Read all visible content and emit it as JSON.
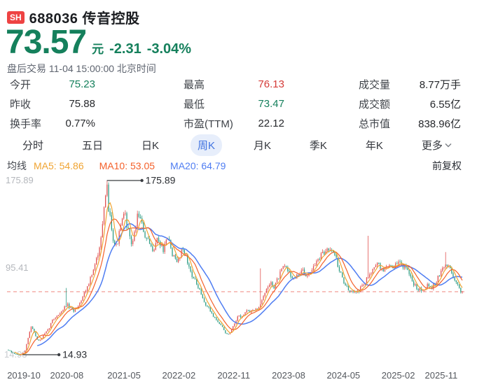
{
  "header": {
    "exchange_badge": "SH",
    "code": "688036",
    "name": "传音控股",
    "full_title": "688036 传音控股"
  },
  "quote": {
    "price": "73.57",
    "currency_label": "元",
    "change": "-2.31",
    "change_pct": "-3.04%",
    "session_note": "盘后交易 11-04 15:00:00 北京时间"
  },
  "stats": {
    "columns": [
      [
        {
          "label": "今开",
          "value": "75.23",
          "color": "green"
        },
        {
          "label": "昨收",
          "value": "75.88",
          "color": "neutral"
        },
        {
          "label": "换手率",
          "value": "0.77%",
          "color": "neutral"
        }
      ],
      [
        {
          "label": "最高",
          "value": "76.13",
          "color": "red"
        },
        {
          "label": "最低",
          "value": "73.47",
          "color": "green"
        },
        {
          "label": "市盈(TTM)",
          "value": "22.12",
          "color": "neutral"
        }
      ],
      [
        {
          "label": "成交量",
          "value": "8.77万手",
          "color": "neutral"
        },
        {
          "label": "成交额",
          "value": "6.55亿",
          "color": "neutral"
        },
        {
          "label": "总市值",
          "value": "838.96亿",
          "color": "neutral"
        }
      ]
    ]
  },
  "tabs": {
    "items": [
      {
        "label": "分时",
        "active": false
      },
      {
        "label": "五日",
        "active": false
      },
      {
        "label": "日K",
        "active": false
      },
      {
        "label": "周K",
        "active": true
      },
      {
        "label": "月K",
        "active": false
      },
      {
        "label": "季K",
        "active": false
      },
      {
        "label": "年K",
        "active": false
      },
      {
        "label": "更多",
        "active": false,
        "has_chevron": true
      }
    ]
  },
  "ma_bar": {
    "prefix": "均线",
    "items": [
      {
        "label": "MA5:",
        "value": "54.86"
      },
      {
        "label": "MA10:",
        "value": "53.05"
      },
      {
        "label": "MA20:",
        "value": "64.79"
      }
    ],
    "right_label": "前复权"
  },
  "chart_data": {
    "type": "candlestick",
    "timeframe": "weekly",
    "title": "",
    "ylim": [
      14.93,
      175.89
    ],
    "y_axis_labels": [
      "175.89",
      "95.41",
      "14.93"
    ],
    "x_axis_labels": [
      "2019-10",
      "2020-08",
      "2021-05",
      "2022-02",
      "2022-11",
      "2023-08",
      "2024-05",
      "2025-02",
      "2025-11"
    ],
    "high_annotation": {
      "value": "175.89",
      "t": 0.217
    },
    "low_annotation": {
      "value": "14.93",
      "t": 0.028
    },
    "current_price": 73.57,
    "num_candles": 300,
    "colors": {
      "up": "#e15352",
      "down": "#2f9d85",
      "ma5": "#f0a432",
      "ma10": "#f4602a",
      "ma20": "#4f7df2",
      "dash": "#f2938c",
      "annotation": "#3a3d42"
    },
    "price_path": [
      [
        0.0,
        20
      ],
      [
        0.009,
        17
      ],
      [
        0.02,
        15.5
      ],
      [
        0.028,
        15.2
      ],
      [
        0.036,
        18
      ],
      [
        0.043,
        30
      ],
      [
        0.05,
        42
      ],
      [
        0.056,
        38
      ],
      [
        0.062,
        30
      ],
      [
        0.068,
        28
      ],
      [
        0.077,
        33
      ],
      [
        0.087,
        38
      ],
      [
        0.098,
        48
      ],
      [
        0.108,
        52
      ],
      [
        0.118,
        55
      ],
      [
        0.128,
        62
      ],
      [
        0.136,
        58
      ],
      [
        0.144,
        56
      ],
      [
        0.152,
        60
      ],
      [
        0.159,
        65
      ],
      [
        0.167,
        72
      ],
      [
        0.175,
        80
      ],
      [
        0.183,
        88
      ],
      [
        0.19,
        96
      ],
      [
        0.198,
        110
      ],
      [
        0.206,
        132
      ],
      [
        0.214,
        158
      ],
      [
        0.217,
        170
      ],
      [
        0.221,
        150
      ],
      [
        0.226,
        138
      ],
      [
        0.232,
        120
      ],
      [
        0.238,
        115
      ],
      [
        0.245,
        128
      ],
      [
        0.251,
        140
      ],
      [
        0.257,
        144
      ],
      [
        0.263,
        132
      ],
      [
        0.269,
        118
      ],
      [
        0.276,
        122
      ],
      [
        0.282,
        138
      ],
      [
        0.286,
        148
      ],
      [
        0.291,
        140
      ],
      [
        0.297,
        130
      ],
      [
        0.303,
        122
      ],
      [
        0.31,
        118
      ],
      [
        0.316,
        112
      ],
      [
        0.322,
        116
      ],
      [
        0.328,
        122
      ],
      [
        0.334,
        118
      ],
      [
        0.341,
        112
      ],
      [
        0.347,
        118
      ],
      [
        0.353,
        122
      ],
      [
        0.359,
        112
      ],
      [
        0.365,
        104
      ],
      [
        0.372,
        100
      ],
      [
        0.378,
        108
      ],
      [
        0.384,
        114
      ],
      [
        0.39,
        108
      ],
      [
        0.396,
        98
      ],
      [
        0.402,
        92
      ],
      [
        0.409,
        85
      ],
      [
        0.415,
        80
      ],
      [
        0.423,
        72
      ],
      [
        0.43,
        65
      ],
      [
        0.438,
        60
      ],
      [
        0.446,
        55
      ],
      [
        0.454,
        50
      ],
      [
        0.461,
        46
      ],
      [
        0.469,
        42
      ],
      [
        0.477,
        37
      ],
      [
        0.484,
        33
      ],
      [
        0.492,
        38
      ],
      [
        0.5,
        45
      ],
      [
        0.508,
        52
      ],
      [
        0.516,
        50
      ],
      [
        0.523,
        56
      ],
      [
        0.531,
        54
      ],
      [
        0.539,
        58
      ],
      [
        0.546,
        56
      ],
      [
        0.554,
        62
      ],
      [
        0.562,
        70
      ],
      [
        0.57,
        76
      ],
      [
        0.577,
        82
      ],
      [
        0.585,
        78
      ],
      [
        0.593,
        85
      ],
      [
        0.601,
        92
      ],
      [
        0.608,
        97
      ],
      [
        0.616,
        93
      ],
      [
        0.624,
        88
      ],
      [
        0.632,
        85
      ],
      [
        0.639,
        90
      ],
      [
        0.647,
        93
      ],
      [
        0.655,
        88
      ],
      [
        0.663,
        92
      ],
      [
        0.67,
        95
      ],
      [
        0.678,
        100
      ],
      [
        0.686,
        105
      ],
      [
        0.693,
        108
      ],
      [
        0.701,
        112
      ],
      [
        0.709,
        115
      ],
      [
        0.717,
        112
      ],
      [
        0.724,
        100
      ],
      [
        0.732,
        90
      ],
      [
        0.74,
        82
      ],
      [
        0.748,
        75
      ],
      [
        0.755,
        72
      ],
      [
        0.763,
        76
      ],
      [
        0.771,
        74
      ],
      [
        0.778,
        78
      ],
      [
        0.786,
        82
      ],
      [
        0.794,
        88
      ],
      [
        0.802,
        95
      ],
      [
        0.809,
        100
      ],
      [
        0.817,
        97
      ],
      [
        0.825,
        93
      ],
      [
        0.833,
        96
      ],
      [
        0.84,
        99
      ],
      [
        0.848,
        96
      ],
      [
        0.856,
        99
      ],
      [
        0.864,
        101
      ],
      [
        0.871,
        97
      ],
      [
        0.879,
        92
      ],
      [
        0.887,
        85
      ],
      [
        0.894,
        80
      ],
      [
        0.902,
        77
      ],
      [
        0.91,
        75
      ],
      [
        0.918,
        78
      ],
      [
        0.925,
        80
      ],
      [
        0.933,
        78
      ],
      [
        0.941,
        82
      ],
      [
        0.949,
        88
      ],
      [
        0.956,
        94
      ],
      [
        0.964,
        99
      ],
      [
        0.972,
        96
      ],
      [
        0.98,
        88
      ],
      [
        0.988,
        80
      ],
      [
        0.995,
        75
      ],
      [
        1.0,
        73.57
      ]
    ],
    "spikes": [
      {
        "t": 0.028,
        "low": 14.93
      },
      {
        "t": 0.128,
        "high": 77
      },
      {
        "t": 0.217,
        "high": 175.89
      },
      {
        "t": 0.554,
        "high": 95
      },
      {
        "t": 0.794,
        "high": 125
      },
      {
        "t": 0.964,
        "high": 110
      }
    ]
  }
}
